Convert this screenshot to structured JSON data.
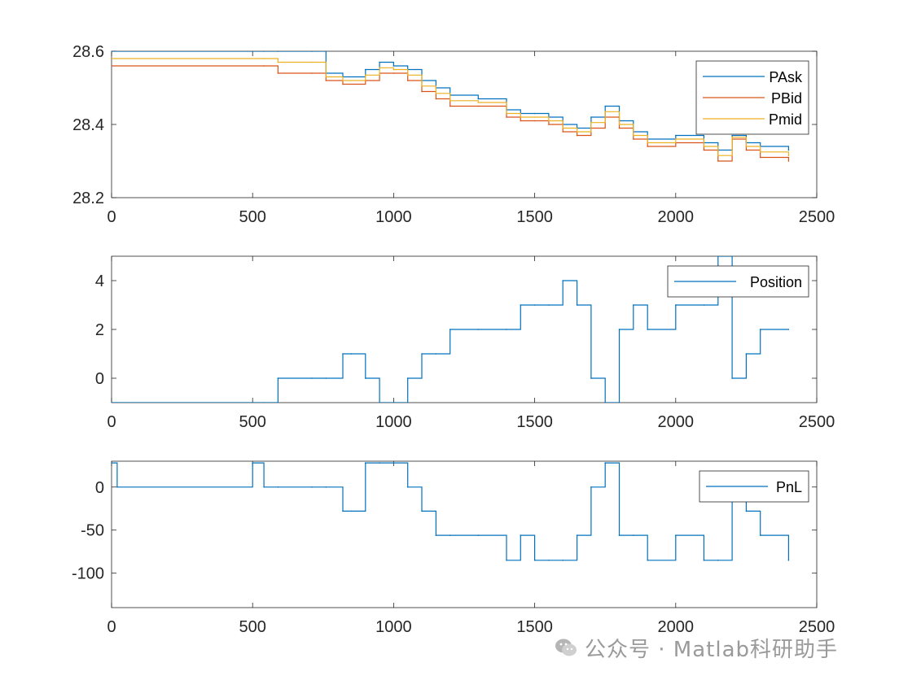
{
  "chart_data": [
    {
      "type": "line",
      "xlim": [
        0,
        2500
      ],
      "ylim": [
        28.2,
        28.6
      ],
      "xticks": [
        0,
        500,
        1000,
        1500,
        2000,
        2500
      ],
      "yticks": [
        28.2,
        28.4,
        28.6
      ],
      "ytick_labels": [
        "28.2",
        "28.4",
        "28.6"
      ],
      "legend_position": "top-right",
      "series": [
        {
          "name": "PAsk",
          "color": "#0072BD",
          "x": [
            0,
            540,
            590,
            710,
            760,
            820,
            900,
            950,
            1000,
            1050,
            1100,
            1150,
            1200,
            1300,
            1400,
            1450,
            1500,
            1550,
            1600,
            1650,
            1700,
            1750,
            1800,
            1850,
            1900,
            2000,
            2100,
            2150,
            2200,
            2250,
            2300,
            2400
          ],
          "y": [
            28.6,
            28.6,
            28.6,
            28.6,
            28.54,
            28.53,
            28.55,
            28.57,
            28.56,
            28.55,
            28.52,
            28.5,
            28.48,
            28.47,
            28.44,
            28.43,
            28.43,
            28.42,
            28.4,
            28.39,
            28.42,
            28.45,
            28.41,
            28.38,
            28.36,
            28.37,
            28.35,
            28.33,
            28.37,
            28.35,
            28.34,
            28.33
          ]
        },
        {
          "name": "PBid",
          "color": "#D95319",
          "x": [
            0,
            540,
            590,
            710,
            760,
            820,
            900,
            950,
            1000,
            1050,
            1100,
            1150,
            1200,
            1300,
            1400,
            1450,
            1500,
            1550,
            1600,
            1650,
            1700,
            1750,
            1800,
            1850,
            1900,
            2000,
            2100,
            2150,
            2200,
            2250,
            2300,
            2400
          ],
          "y": [
            28.56,
            28.56,
            28.54,
            28.54,
            28.52,
            28.51,
            28.52,
            28.54,
            28.54,
            28.52,
            28.49,
            28.47,
            28.45,
            28.45,
            28.42,
            28.41,
            28.41,
            28.4,
            28.38,
            28.37,
            28.39,
            28.42,
            28.39,
            28.36,
            28.34,
            28.35,
            28.33,
            28.3,
            28.36,
            28.33,
            28.31,
            28.3
          ]
        },
        {
          "name": "Pmid",
          "color": "#EDB120",
          "x": [
            0,
            540,
            590,
            710,
            760,
            820,
            900,
            950,
            1000,
            1050,
            1100,
            1150,
            1200,
            1300,
            1400,
            1450,
            1500,
            1550,
            1600,
            1650,
            1700,
            1750,
            1800,
            1850,
            1900,
            2000,
            2100,
            2150,
            2200,
            2250,
            2300,
            2400
          ],
          "y": [
            28.58,
            28.58,
            28.57,
            28.57,
            28.53,
            28.52,
            28.535,
            28.555,
            28.55,
            28.535,
            28.505,
            28.485,
            28.465,
            28.46,
            28.43,
            28.42,
            28.42,
            28.41,
            28.39,
            28.38,
            28.405,
            28.435,
            28.4,
            28.37,
            28.35,
            28.36,
            28.34,
            28.315,
            28.365,
            28.34,
            28.325,
            28.315
          ]
        }
      ]
    },
    {
      "type": "line",
      "xlim": [
        0,
        2500
      ],
      "ylim": [
        -1,
        5
      ],
      "xticks": [
        0,
        500,
        1000,
        1500,
        2000,
        2500
      ],
      "yticks": [
        0,
        2,
        4
      ],
      "ytick_labels": [
        "0",
        "2",
        "4"
      ],
      "legend_position": "top-right",
      "series": [
        {
          "name": "Position",
          "color": "#0072BD",
          "x": [
            0,
            20,
            500,
            540,
            590,
            710,
            760,
            820,
            850,
            900,
            950,
            1000,
            1050,
            1100,
            1150,
            1200,
            1300,
            1400,
            1450,
            1500,
            1550,
            1600,
            1650,
            1700,
            1750,
            1800,
            1850,
            1900,
            2000,
            2100,
            2150,
            2200,
            2250,
            2300,
            2400
          ],
          "y": [
            -1,
            -1,
            -1,
            -1,
            0,
            0,
            0,
            1,
            1,
            0,
            -1,
            -1,
            0,
            1,
            1,
            2,
            2,
            2,
            3,
            3,
            3,
            4,
            3,
            0,
            -1,
            2,
            3,
            2,
            3,
            3,
            5,
            0,
            1,
            2,
            2
          ]
        }
      ]
    },
    {
      "type": "line",
      "xlim": [
        0,
        2500
      ],
      "ylim": [
        -140,
        30
      ],
      "xticks": [
        0,
        500,
        1000,
        1500,
        2000,
        2500
      ],
      "yticks": [
        -100,
        -50,
        0
      ],
      "ytick_labels": [
        "-100",
        "-50",
        "0"
      ],
      "legend_position": "top-right",
      "series": [
        {
          "name": "PnL",
          "color": "#0072BD",
          "x": [
            0,
            20,
            500,
            540,
            590,
            710,
            760,
            820,
            850,
            900,
            950,
            1000,
            1050,
            1100,
            1150,
            1200,
            1300,
            1400,
            1450,
            1500,
            1550,
            1600,
            1650,
            1700,
            1750,
            1800,
            1850,
            1900,
            2000,
            2100,
            2150,
            2200,
            2250,
            2300,
            2400
          ],
          "y": [
            28,
            0,
            28,
            0,
            0,
            0,
            0,
            -28,
            -28,
            28,
            28,
            28,
            0,
            -28,
            -56,
            -56,
            -56,
            -85,
            -56,
            -85,
            -85,
            -85,
            -56,
            0,
            28,
            -56,
            -56,
            -85,
            -56,
            -85,
            -85,
            0,
            -28,
            -56,
            -85
          ]
        }
      ]
    }
  ],
  "watermark": {
    "icon": "wechat-icon",
    "text": "公众号 · Matlab科研助手"
  }
}
